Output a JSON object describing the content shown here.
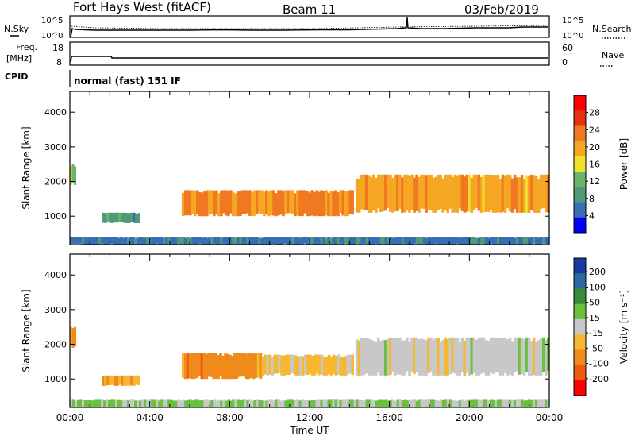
{
  "header": {
    "radar": "Fort Hays West (fitACF)",
    "beam": "Beam 11",
    "date": "03/Feb/2019"
  },
  "noise_panel": {
    "left_label": "N.Sky",
    "left_ticks": [
      "10^5",
      "10^0"
    ],
    "right_label": "N.Search",
    "right_ticks": [
      "10^5",
      "10^0"
    ]
  },
  "freq_panel": {
    "left_label_1": "Freq.",
    "left_label_2": "[MHz]",
    "left_ticks": [
      "18",
      "8"
    ],
    "right_label": "Nave",
    "right_ticks": [
      "60",
      "0"
    ]
  },
  "cpid_panel": {
    "label": "CPID",
    "text": "normal (fast) 151 IF"
  },
  "colors": {
    "power": [
      "#0000ff",
      "#3a6db4",
      "#4f9a78",
      "#6cb46c",
      "#f0e030",
      "#f5a623",
      "#f07820",
      "#e83010",
      "#ff0000"
    ],
    "velocity": [
      "#ff0000",
      "#f05a10",
      "#f08a1a",
      "#f5b830",
      "#c8c8c8",
      "#6cc040",
      "#3a8a3a",
      "#2a6aa0",
      "#1a3aa0"
    ]
  },
  "chart_data": [
    {
      "type": "heatmap",
      "title": "Power",
      "ylabel": "Slant Range [km]",
      "yticks": [
        "4000",
        "3000",
        "2000",
        "1000"
      ],
      "ylim": [
        180,
        4600
      ],
      "xlim": [
        0,
        24
      ],
      "colorbar_label": "Power [dB]",
      "colorbar_ticks": [
        "28",
        "24",
        "20",
        "16",
        "12",
        "8",
        "4"
      ],
      "colorbar_range": [
        0,
        32
      ],
      "echo_regions": [
        {
          "t": [
            0.0,
            0.3
          ],
          "range_km": [
            1900,
            2500
          ],
          "value": 14
        },
        {
          "t": [
            1.6,
            3.5
          ],
          "range_km": [
            800,
            1100
          ],
          "value": 9
        },
        {
          "t": [
            5.6,
            14.2
          ],
          "range_km": [
            1000,
            1750
          ],
          "value": 22
        },
        {
          "t": [
            14.3,
            24.0
          ],
          "range_km": [
            1100,
            2200
          ],
          "value": 20
        },
        {
          "t": [
            0.0,
            24.0
          ],
          "range_km": [
            180,
            400
          ],
          "value": 6
        }
      ]
    },
    {
      "type": "heatmap",
      "title": "Velocity",
      "ylabel": "Slant Range [km]",
      "yticks": [
        "4000",
        "3000",
        "2000",
        "1000"
      ],
      "ylim": [
        180,
        4600
      ],
      "xlim": [
        0,
        24
      ],
      "xlabel": "Time UT",
      "xticks": [
        "00:00",
        "04:00",
        "08:00",
        "12:00",
        "16:00",
        "20:00",
        "00:00"
      ],
      "colorbar_label": "Velocity [m s⁻¹]",
      "colorbar_ticks": [
        "200",
        "100",
        "50",
        "15",
        "-15",
        "-50",
        "-100",
        "-200"
      ],
      "colorbar_range": [
        -250,
        250
      ],
      "echo_regions": [
        {
          "t": [
            0.0,
            0.3
          ],
          "range_km": [
            1900,
            2500
          ],
          "value": -60
        },
        {
          "t": [
            1.6,
            3.5
          ],
          "range_km": [
            800,
            1100
          ],
          "value": -80
        },
        {
          "t": [
            5.6,
            9.6
          ],
          "range_km": [
            1000,
            1750
          ],
          "value": -110
        },
        {
          "t": [
            9.6,
            14.2
          ],
          "range_km": [
            1100,
            1700
          ],
          "value": -40
        },
        {
          "t": [
            14.3,
            24.0
          ],
          "range_km": [
            1100,
            2200
          ],
          "value": 0
        },
        {
          "t": [
            0.0,
            24.0
          ],
          "range_km": [
            180,
            400
          ],
          "value": 30
        }
      ]
    }
  ]
}
